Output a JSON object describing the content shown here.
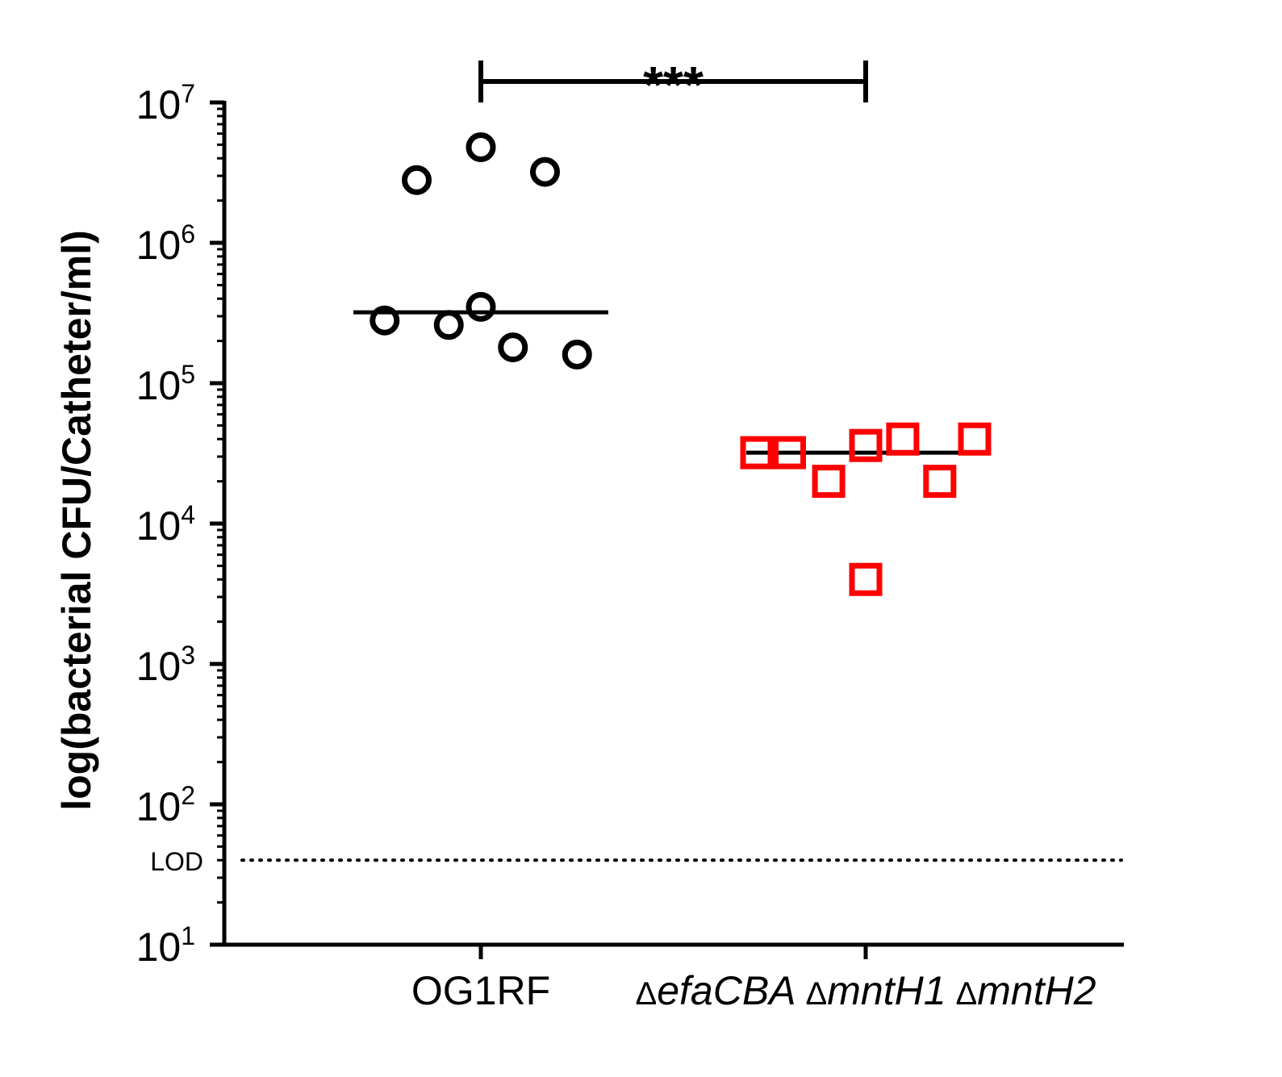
{
  "chart_data": {
    "type": "scatter",
    "title": "",
    "xlabel": "",
    "ylabel": "log(bacterial CFU/Catheter/ml)",
    "yscale": "log",
    "ylim": [
      10,
      10000000
    ],
    "ytick_values": [
      10,
      100,
      1000,
      10000,
      100000,
      1000000,
      10000000
    ],
    "ytick_labels": [
      {
        "base": "10",
        "exp": "1"
      },
      {
        "base": "10",
        "exp": "2"
      },
      {
        "base": "10",
        "exp": "3"
      },
      {
        "base": "10",
        "exp": "4"
      },
      {
        "base": "10",
        "exp": "5"
      },
      {
        "base": "10",
        "exp": "6"
      },
      {
        "base": "10",
        "exp": "7"
      }
    ],
    "categories": [
      {
        "label": "OG1RF",
        "parts": [
          {
            "prefix": "",
            "text": "OG1RF",
            "italic": false
          }
        ]
      },
      {
        "label": "ΔefaCBA ΔmntH1 ΔmntH2",
        "parts": [
          {
            "prefix": "Δ",
            "text": "efaCBA",
            "italic": true
          },
          {
            "prefix": "Δ",
            "text": "mntH1",
            "italic": true
          },
          {
            "prefix": "Δ",
            "text": "mntH2",
            "italic": true
          }
        ]
      }
    ],
    "series": [
      {
        "category": 0,
        "marker": "circle",
        "color": "#000000",
        "points": [
          {
            "offset": -0.3,
            "y": 2800000
          },
          {
            "offset": 0.0,
            "y": 4800000
          },
          {
            "offset": 0.3,
            "y": 3200000
          },
          {
            "offset": -0.45,
            "y": 280000
          },
          {
            "offset": -0.15,
            "y": 260000
          },
          {
            "offset": 0.0,
            "y": 350000
          },
          {
            "offset": 0.15,
            "y": 180000
          },
          {
            "offset": 0.45,
            "y": 160000
          }
        ],
        "median": 320000
      },
      {
        "category": 1,
        "marker": "square",
        "color": "#ff0000",
        "points": [
          {
            "offset": -0.5,
            "y": 32000
          },
          {
            "offset": -0.35,
            "y": 32000
          },
          {
            "offset": -0.17,
            "y": 20000
          },
          {
            "offset": 0.0,
            "y": 36000
          },
          {
            "offset": 0.17,
            "y": 40000
          },
          {
            "offset": 0.34,
            "y": 20000
          },
          {
            "offset": 0.5,
            "y": 40000
          },
          {
            "offset": 0.0,
            "y": 4000
          }
        ],
        "median": 32000
      }
    ],
    "reference_line": {
      "label": "LOD",
      "y": 40,
      "style": "dotted"
    },
    "significance": {
      "from": 0,
      "to": 1,
      "label": "***"
    },
    "grid": false,
    "legend": "none"
  }
}
